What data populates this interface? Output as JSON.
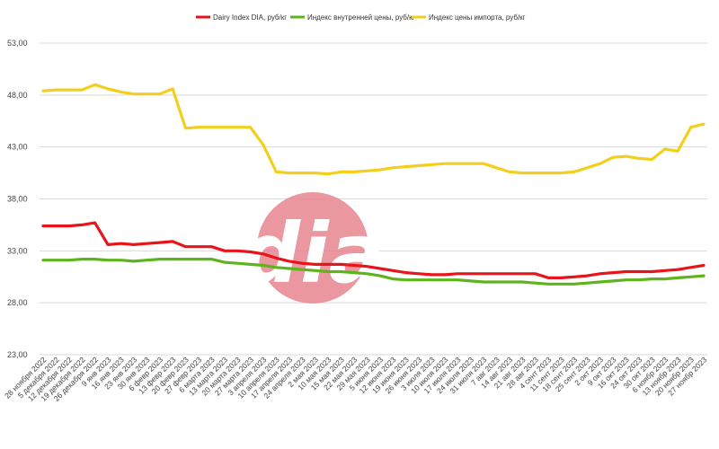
{
  "chart_data": {
    "type": "line",
    "title": "",
    "xlabel": "",
    "ylabel": "",
    "ylim": [
      23,
      53
    ],
    "yticks": [
      "53,00",
      "48,00",
      "43,00",
      "38,00",
      "33,00",
      "28,00",
      "23,00"
    ],
    "ytick_values": [
      53,
      48,
      43,
      38,
      33,
      28,
      23
    ],
    "grid": true,
    "legend_position": "top",
    "categories": [
      "28 ноября 2022",
      "5 декабря 2022",
      "12 декабря 2022",
      "19 декабря 2022",
      "26 декабря 2022",
      "9 янв 2023",
      "16 янв 2023",
      "23 янв 2023",
      "30 янв 2023",
      "6 февр 2023",
      "13 февр 2023",
      "20 февр 2023",
      "27 февр 2023",
      "6 марта 2023",
      "13 марта 2023",
      "20 марта 2023",
      "27 марта 2023",
      "3 апреля 2023",
      "10 апреля 2023",
      "17 апреля 2023",
      "24 апреля 2023",
      "2 мая 2023",
      "10 мая 2023",
      "15 мая 2023",
      "22 мая 2023",
      "29 мая 2023",
      "5 июня 2023",
      "12 июня 2023",
      "19 июня 2023",
      "26 июня 2023",
      "3 июля 2023",
      "10 июля 2023",
      "17 июля 2023",
      "24 июля 2023",
      "31 июля 2023",
      "7 авг 2023",
      "14 авг 2023",
      "21 авг 2023",
      "28 авг 2023",
      "4 сент 2023",
      "11 сент 2023",
      "18 сент 2023",
      "25 сент 2023",
      "2 окт 2023",
      "9 окт 2023",
      "16 окт 2023",
      "24 окт 2023",
      "30 окт 2023",
      "6 ноябр 2023",
      "13 ноябр 2023",
      "20 ноябр 2023",
      "27 ноябр 2023"
    ],
    "series": [
      {
        "name": "Dairy Index DIA, руб/кг",
        "color": "#e8141b",
        "values": [
          35.4,
          35.4,
          35.4,
          35.5,
          35.7,
          33.6,
          33.7,
          33.6,
          33.7,
          33.8,
          33.9,
          33.4,
          33.4,
          33.4,
          33.0,
          33.0,
          32.9,
          32.7,
          32.3,
          32.0,
          31.8,
          31.7,
          31.7,
          31.7,
          31.6,
          31.5,
          31.3,
          31.1,
          30.9,
          30.8,
          30.7,
          30.7,
          30.8,
          30.8,
          30.8,
          30.8,
          30.8,
          30.8,
          30.8,
          30.4,
          30.4,
          30.5,
          30.6,
          30.8,
          30.9,
          31.0,
          31.0,
          31.0,
          31.1,
          31.2,
          31.4,
          31.6
        ]
      },
      {
        "name": "Индекс внутренней цены, руб/кг",
        "color": "#5fb41e",
        "values": [
          32.1,
          32.1,
          32.1,
          32.2,
          32.2,
          32.1,
          32.1,
          32.0,
          32.1,
          32.2,
          32.2,
          32.2,
          32.2,
          32.2,
          31.9,
          31.8,
          31.7,
          31.6,
          31.4,
          31.3,
          31.2,
          31.1,
          31.0,
          31.0,
          30.9,
          30.8,
          30.6,
          30.3,
          30.2,
          30.2,
          30.2,
          30.2,
          30.2,
          30.1,
          30.0,
          30.0,
          30.0,
          30.0,
          29.9,
          29.8,
          29.8,
          29.8,
          29.9,
          30.0,
          30.1,
          30.2,
          30.2,
          30.3,
          30.3,
          30.4,
          30.5,
          30.6
        ]
      },
      {
        "name": "Индекс цены импорта, руб/кг",
        "color": "#f2cf1c",
        "values": [
          48.4,
          48.5,
          48.5,
          48.5,
          49.0,
          48.6,
          48.3,
          48.1,
          48.1,
          48.1,
          48.6,
          44.8,
          44.9,
          44.9,
          44.9,
          44.9,
          44.9,
          43.2,
          40.6,
          40.5,
          40.5,
          40.5,
          40.4,
          40.6,
          40.6,
          40.7,
          40.8,
          41.0,
          41.1,
          41.2,
          41.3,
          41.4,
          41.4,
          41.4,
          41.4,
          41.0,
          40.6,
          40.5,
          40.5,
          40.5,
          40.5,
          40.6,
          41.0,
          41.4,
          42.0,
          42.1,
          41.9,
          41.8,
          42.8,
          42.6,
          44.9,
          45.2
        ]
      }
    ],
    "watermark": "dia"
  }
}
